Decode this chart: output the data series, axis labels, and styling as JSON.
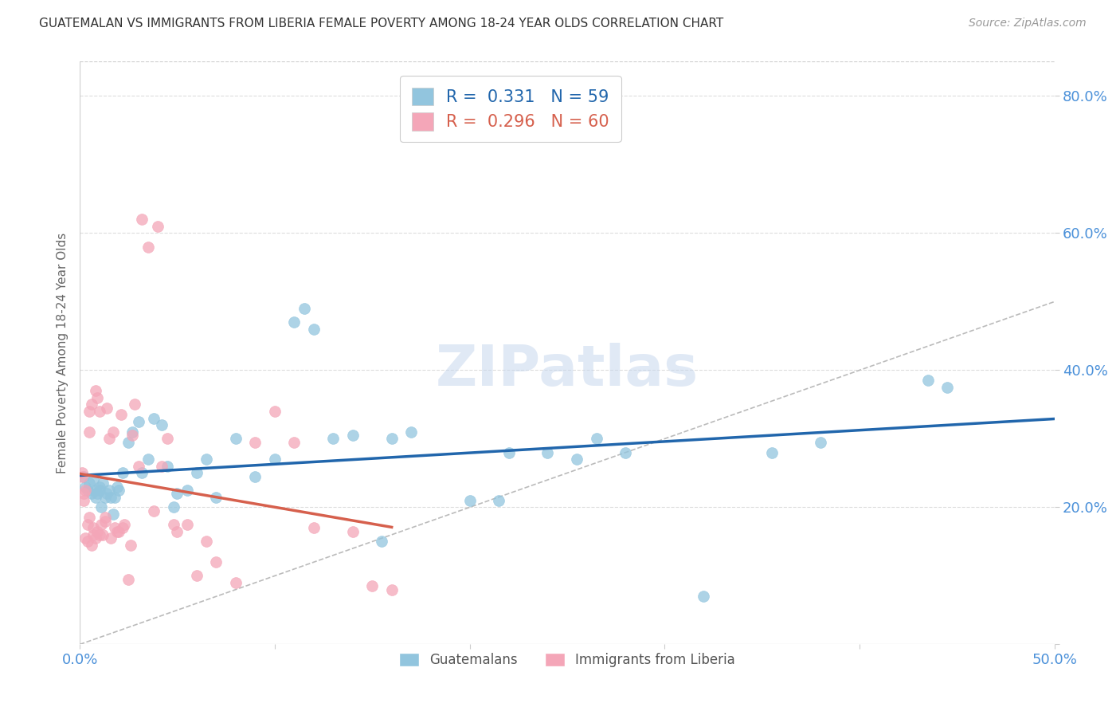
{
  "title": "GUATEMALAN VS IMMIGRANTS FROM LIBERIA FEMALE POVERTY AMONG 18-24 YEAR OLDS CORRELATION CHART",
  "source": "Source: ZipAtlas.com",
  "ylabel": "Female Poverty Among 18-24 Year Olds",
  "xlim": [
    0,
    0.5
  ],
  "ylim": [
    0,
    0.85
  ],
  "guatemalan_R": 0.331,
  "guatemalan_N": 59,
  "liberia_R": 0.296,
  "liberia_N": 60,
  "blue_color": "#92c5de",
  "pink_color": "#f4a6b8",
  "blue_line_color": "#2166ac",
  "pink_line_color": "#d6604d",
  "diagonal_color": "#bbbbbb",
  "legend1_label": "Guatemalans",
  "legend2_label": "Immigrants from Liberia",
  "guatemalan_x": [
    0.002,
    0.003,
    0.004,
    0.005,
    0.006,
    0.007,
    0.008,
    0.008,
    0.009,
    0.01,
    0.01,
    0.011,
    0.012,
    0.013,
    0.014,
    0.015,
    0.016,
    0.017,
    0.018,
    0.019,
    0.02,
    0.022,
    0.025,
    0.027,
    0.03,
    0.032,
    0.035,
    0.038,
    0.042,
    0.045,
    0.048,
    0.05,
    0.055,
    0.06,
    0.065,
    0.07,
    0.08,
    0.09,
    0.1,
    0.11,
    0.115,
    0.12,
    0.13,
    0.14,
    0.155,
    0.16,
    0.17,
    0.2,
    0.215,
    0.22,
    0.24,
    0.255,
    0.265,
    0.28,
    0.32,
    0.355,
    0.38,
    0.435,
    0.445
  ],
  "guatemalan_y": [
    0.245,
    0.23,
    0.225,
    0.235,
    0.22,
    0.24,
    0.215,
    0.225,
    0.22,
    0.225,
    0.23,
    0.2,
    0.235,
    0.215,
    0.22,
    0.225,
    0.215,
    0.19,
    0.215,
    0.23,
    0.225,
    0.25,
    0.295,
    0.31,
    0.325,
    0.25,
    0.27,
    0.33,
    0.32,
    0.26,
    0.2,
    0.22,
    0.225,
    0.25,
    0.27,
    0.215,
    0.3,
    0.245,
    0.27,
    0.47,
    0.49,
    0.46,
    0.3,
    0.305,
    0.15,
    0.3,
    0.31,
    0.21,
    0.21,
    0.28,
    0.28,
    0.27,
    0.3,
    0.28,
    0.07,
    0.28,
    0.295,
    0.385,
    0.375
  ],
  "liberia_x": [
    0.001,
    0.001,
    0.002,
    0.002,
    0.003,
    0.003,
    0.004,
    0.004,
    0.005,
    0.005,
    0.005,
    0.006,
    0.006,
    0.007,
    0.007,
    0.008,
    0.008,
    0.009,
    0.009,
    0.01,
    0.01,
    0.011,
    0.012,
    0.013,
    0.013,
    0.014,
    0.015,
    0.016,
    0.017,
    0.018,
    0.019,
    0.02,
    0.021,
    0.022,
    0.023,
    0.025,
    0.026,
    0.027,
    0.028,
    0.03,
    0.032,
    0.035,
    0.038,
    0.04,
    0.042,
    0.045,
    0.048,
    0.05,
    0.055,
    0.06,
    0.065,
    0.07,
    0.08,
    0.09,
    0.1,
    0.11,
    0.12,
    0.14,
    0.15,
    0.16
  ],
  "liberia_y": [
    0.245,
    0.25,
    0.21,
    0.22,
    0.225,
    0.155,
    0.175,
    0.15,
    0.185,
    0.31,
    0.34,
    0.145,
    0.35,
    0.16,
    0.17,
    0.155,
    0.37,
    0.165,
    0.36,
    0.16,
    0.34,
    0.175,
    0.16,
    0.18,
    0.185,
    0.345,
    0.3,
    0.155,
    0.31,
    0.17,
    0.165,
    0.165,
    0.335,
    0.17,
    0.175,
    0.095,
    0.145,
    0.305,
    0.35,
    0.26,
    0.62,
    0.58,
    0.195,
    0.61,
    0.26,
    0.3,
    0.175,
    0.165,
    0.175,
    0.1,
    0.15,
    0.12,
    0.09,
    0.295,
    0.34,
    0.295,
    0.17,
    0.165,
    0.085,
    0.08
  ]
}
